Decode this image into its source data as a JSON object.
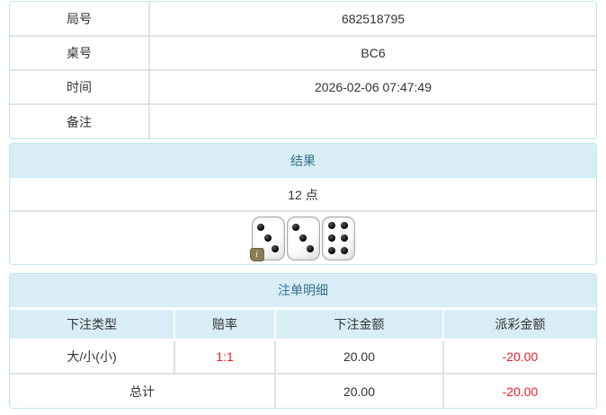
{
  "info_table": {
    "rows": [
      {
        "label": "局号",
        "value": "682518795"
      },
      {
        "label": "桌号",
        "value": "BC6"
      },
      {
        "label": "时间",
        "value": "2026-02-06 07:47:49"
      },
      {
        "label": "备注",
        "value": ""
      }
    ]
  },
  "result_panel": {
    "title": "结果",
    "points": "12 点",
    "dice": [
      3,
      3,
      6
    ],
    "info_badge_label": "i"
  },
  "bets_panel": {
    "title": "注单明细",
    "columns": {
      "bet_type": "下注类型",
      "odds": "赔率",
      "bet_amount": "下注金额",
      "payout": "派彩金额"
    },
    "rows": [
      {
        "bet_type": "大/小(小)",
        "odds": "1:1",
        "bet_amount": "20.00",
        "payout": "-20.00"
      }
    ],
    "total": {
      "label": "总计",
      "bet_amount": "20.00",
      "payout": "-20.00"
    }
  },
  "colors": {
    "panel_border": "#bce8f1",
    "header_bg": "#d9edf7",
    "header_text": "#31708f",
    "negative_red": "#ee1c25",
    "row_border": "#e2e2e2",
    "body_text": "#333333"
  }
}
